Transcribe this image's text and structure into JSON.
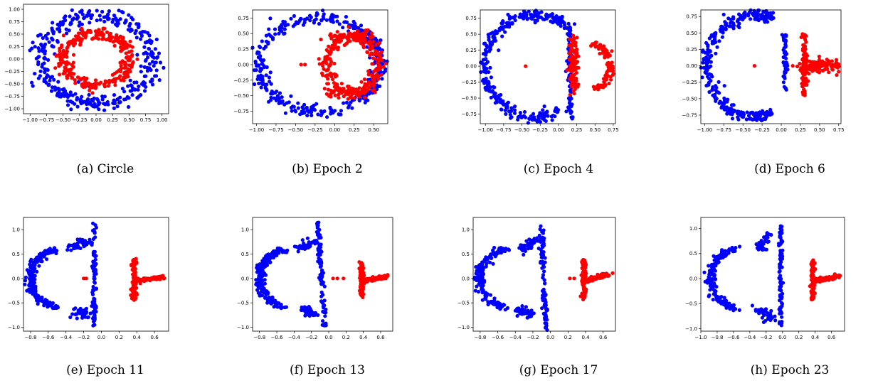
{
  "figure": {
    "colors": {
      "class_a": "#0000ff",
      "class_b": "#ff0000",
      "axes": "#000000",
      "background": "#ffffff"
    }
  },
  "chart_data": [
    {
      "type": "scatter",
      "caption": "(a)  Circle",
      "xlim": [
        -1.1,
        1.1
      ],
      "ylim": [
        -1.1,
        1.1
      ],
      "xticks": [
        -1.0,
        -0.75,
        -0.5,
        -0.25,
        0.0,
        0.25,
        0.5,
        0.75,
        1.0
      ],
      "yticks": [
        -1.0,
        -0.75,
        -0.5,
        -0.25,
        0.0,
        0.25,
        0.5,
        0.75,
        1.0
      ],
      "tick_decimals": 2,
      "series": [
        {
          "color": "#0000ff",
          "shape": "ring",
          "points": []
        },
        {
          "color": "#ff0000",
          "shape": "ring_inner",
          "points": []
        }
      ]
    },
    {
      "type": "scatter",
      "caption": "(b)  Epoch 2",
      "xlim": [
        -1.05,
        0.68
      ],
      "ylim": [
        -0.95,
        0.88
      ],
      "xticks": [
        -1.0,
        -0.75,
        -0.5,
        -0.25,
        0.0,
        0.25,
        0.5
      ],
      "yticks": [
        -0.75,
        -0.5,
        -0.25,
        0.0,
        0.25,
        0.5,
        0.75
      ],
      "tick_decimals": 2,
      "series": []
    },
    {
      "type": "scatter",
      "caption": "(c)  Epoch 4",
      "xlim": [
        -1.07,
        0.78
      ],
      "ylim": [
        -0.9,
        0.88
      ],
      "xticks": [
        -1.0,
        -0.75,
        -0.5,
        -0.25,
        0.0,
        0.25,
        0.5,
        0.75
      ],
      "yticks": [
        -0.75,
        -0.5,
        -0.25,
        0.0,
        0.25,
        0.5,
        0.75
      ],
      "tick_decimals": 2,
      "series": []
    },
    {
      "type": "scatter",
      "caption": "(d)  Epoch 6",
      "xlim": [
        -1.05,
        0.78
      ],
      "ylim": [
        -0.88,
        0.85
      ],
      "xticks": [
        -1.0,
        -0.75,
        -0.5,
        -0.25,
        0.0,
        0.25,
        0.5,
        0.75
      ],
      "yticks": [
        -0.75,
        -0.5,
        -0.25,
        0.0,
        0.25,
        0.5,
        0.75
      ],
      "tick_decimals": 2,
      "series": []
    },
    {
      "type": "scatter",
      "caption": "(e)  Epoch 11",
      "xlim": [
        -0.88,
        0.76
      ],
      "ylim": [
        -1.08,
        1.25
      ],
      "xticks": [
        -0.8,
        -0.6,
        -0.4,
        -0.2,
        0.0,
        0.2,
        0.4,
        0.6
      ],
      "yticks": [
        -1.0,
        -0.5,
        0.0,
        0.5,
        1.0
      ],
      "tick_decimals": 1,
      "series": []
    },
    {
      "type": "scatter",
      "caption": "(f)  Epoch 13",
      "xlim": [
        -0.88,
        0.74
      ],
      "ylim": [
        -1.08,
        1.25
      ],
      "xticks": [
        -0.8,
        -0.6,
        -0.4,
        -0.2,
        0.0,
        0.2,
        0.4,
        0.6
      ],
      "yticks": [
        -1.0,
        -0.5,
        0.0,
        0.5,
        1.0
      ],
      "tick_decimals": 1,
      "series": []
    },
    {
      "type": "scatter",
      "caption": "(g)  Epoch 17",
      "xlim": [
        -0.88,
        0.74
      ],
      "ylim": [
        -1.08,
        1.25
      ],
      "xticks": [
        -0.8,
        -0.6,
        -0.4,
        -0.2,
        0.0,
        0.2,
        0.4,
        0.6
      ],
      "yticks": [
        -1.0,
        -0.5,
        0.0,
        0.5,
        1.0
      ],
      "tick_decimals": 1,
      "series": []
    },
    {
      "type": "scatter",
      "caption": "(h)  Epoch 23",
      "xlim": [
        -1.0,
        0.76
      ],
      "ylim": [
        -1.05,
        1.22
      ],
      "xticks": [
        -1.0,
        -0.8,
        -0.6,
        -0.4,
        -0.2,
        0.0,
        0.2,
        0.4,
        0.6
      ],
      "yticks": [
        -1.0,
        -0.5,
        0.0,
        0.5,
        1.0
      ],
      "tick_decimals": 1,
      "series": []
    }
  ],
  "clusters": [
    [
      {
        "color": "#0000ff",
        "kind": "ring",
        "cx": 0,
        "cy": 0,
        "r": 0.85,
        "spread": 0.08,
        "n": 360
      },
      {
        "color": "#ff0000",
        "kind": "ring",
        "cx": 0,
        "cy": 0,
        "r": 0.5,
        "spread": 0.06,
        "n": 300
      }
    ],
    [
      {
        "color": "#0000ff",
        "kind": "arc",
        "cx": -0.2,
        "cy": 0,
        "rx": 0.78,
        "ry": 0.76,
        "a0": 0,
        "a1": 360,
        "spread": 0.05,
        "n": 330
      },
      {
        "color": "#0000ff",
        "kind": "arc",
        "cx": 0.48,
        "cy": 0,
        "rx": 0.1,
        "ry": 0.4,
        "a0": -90,
        "a1": 90,
        "spread": 0.04,
        "n": 60
      },
      {
        "color": "#ff0000",
        "kind": "arc",
        "cx": 0.25,
        "cy": 0.0,
        "rx": 0.35,
        "ry": 0.45,
        "a0": 90,
        "a1": 270,
        "spread": 0.05,
        "n": 120
      },
      {
        "color": "#ff0000",
        "kind": "arc",
        "cx": 0.25,
        "cy": 0.0,
        "rx": 0.3,
        "ry": 0.45,
        "a0": -80,
        "a1": 80,
        "spread": 0.05,
        "n": 120
      },
      {
        "color": "#ff0000",
        "kind": "line",
        "x0": -0.1,
        "y0": 0.45,
        "x1": 0.45,
        "y1": 0.45,
        "spread": 0.04,
        "n": 60
      },
      {
        "color": "#ff0000",
        "kind": "line",
        "x0": -0.1,
        "y0": -0.45,
        "x1": 0.45,
        "y1": -0.45,
        "spread": 0.04,
        "n": 60
      },
      {
        "color": "#ff0000",
        "kind": "points",
        "pts": [
          [
            -0.43,
            0.0
          ],
          [
            -0.38,
            0.0
          ]
        ]
      }
    ],
    [
      {
        "color": "#0000ff",
        "kind": "arc",
        "cx": -0.35,
        "cy": 0,
        "rx": 0.65,
        "ry": 0.8,
        "a0": 55,
        "a1": 305,
        "spread": 0.04,
        "n": 280
      },
      {
        "color": "#0000ff",
        "kind": "line",
        "x0": 0.16,
        "y0": -0.8,
        "x1": 0.16,
        "y1": 0.6,
        "spread": 0.02,
        "n": 90
      },
      {
        "color": "#0000ff",
        "kind": "line",
        "x0": -0.1,
        "y0": 0.8,
        "x1": 0.15,
        "y1": 0.6,
        "spread": 0.04,
        "n": 30
      },
      {
        "color": "#ff0000",
        "kind": "line",
        "x0": 0.2,
        "y0": -0.4,
        "x1": 0.2,
        "y1": 0.45,
        "spread": 0.03,
        "n": 110
      },
      {
        "color": "#ff0000",
        "kind": "arc",
        "cx": 0.45,
        "cy": 0.0,
        "rx": 0.25,
        "ry": 0.35,
        "a0": -80,
        "a1": 80,
        "spread": 0.03,
        "n": 90
      },
      {
        "color": "#ff0000",
        "kind": "points",
        "pts": [
          [
            -0.45,
            0.0
          ]
        ]
      }
    ],
    [
      {
        "color": "#0000ff",
        "kind": "arc",
        "cx": -0.35,
        "cy": 0,
        "rx": 0.62,
        "ry": 0.78,
        "a0": 70,
        "a1": 290,
        "spread": 0.04,
        "n": 260
      },
      {
        "color": "#0000ff",
        "kind": "line",
        "x0": 0.05,
        "y0": -0.5,
        "x1": 0.05,
        "y1": 0.5,
        "spread": 0.015,
        "n": 50
      },
      {
        "color": "#0000ff",
        "kind": "line",
        "x0": -0.35,
        "y0": 0.75,
        "x1": -0.15,
        "y1": 0.75,
        "spread": 0.04,
        "n": 30
      },
      {
        "color": "#0000ff",
        "kind": "line",
        "x0": -0.35,
        "y0": -0.75,
        "x1": -0.15,
        "y1": -0.75,
        "spread": 0.04,
        "n": 30
      },
      {
        "color": "#ff0000",
        "kind": "line",
        "x0": 0.3,
        "y0": -0.45,
        "x1": 0.3,
        "y1": 0.48,
        "spread": 0.02,
        "n": 80
      },
      {
        "color": "#ff0000",
        "kind": "line",
        "x0": 0.3,
        "y0": 0.0,
        "x1": 0.72,
        "y1": 0.0,
        "spread": 0.05,
        "n": 110
      },
      {
        "color": "#ff0000",
        "kind": "points",
        "pts": [
          [
            -0.35,
            0.0
          ],
          [
            0.15,
            0.0
          ]
        ]
      }
    ],
    [
      {
        "color": "#0000ff",
        "kind": "arc",
        "cx": -0.45,
        "cy": 0,
        "rx": 0.35,
        "ry": 0.6,
        "a0": 100,
        "a1": 260,
        "spread": 0.03,
        "n": 180
      },
      {
        "color": "#0000ff",
        "kind": "line",
        "x0": -0.35,
        "y0": 0.6,
        "x1": -0.15,
        "y1": 0.8,
        "spread": 0.04,
        "n": 40
      },
      {
        "color": "#0000ff",
        "kind": "line",
        "x0": -0.25,
        "y0": -0.65,
        "x1": -0.2,
        "y1": -0.75,
        "spread": 0.05,
        "n": 40
      },
      {
        "color": "#0000ff",
        "kind": "line",
        "x0": -0.08,
        "y0": -1.0,
        "x1": -0.08,
        "y1": 1.15,
        "spread": 0.012,
        "n": 90
      },
      {
        "color": "#ff0000",
        "kind": "line",
        "x0": 0.37,
        "y0": -0.45,
        "x1": 0.37,
        "y1": 0.4,
        "spread": 0.015,
        "n": 110
      },
      {
        "color": "#ff0000",
        "kind": "line",
        "x0": 0.37,
        "y0": -0.05,
        "x1": 0.7,
        "y1": 0.03,
        "spread": 0.02,
        "n": 80
      },
      {
        "color": "#ff0000",
        "kind": "points",
        "pts": [
          [
            -0.2,
            0.0
          ],
          [
            -0.17,
            0.0
          ]
        ]
      }
    ],
    [
      {
        "color": "#0000ff",
        "kind": "arc",
        "cx": -0.45,
        "cy": 0,
        "rx": 0.35,
        "ry": 0.6,
        "a0": 100,
        "a1": 260,
        "spread": 0.03,
        "n": 180
      },
      {
        "color": "#0000ff",
        "kind": "line",
        "x0": -0.35,
        "y0": 0.6,
        "x1": -0.15,
        "y1": 0.8,
        "spread": 0.04,
        "n": 40
      },
      {
        "color": "#0000ff",
        "kind": "line",
        "x0": -0.3,
        "y0": -0.6,
        "x1": -0.2,
        "y1": -0.75,
        "spread": 0.04,
        "n": 40
      },
      {
        "color": "#0000ff",
        "kind": "line",
        "x0": -0.12,
        "y0": 1.15,
        "x1": -0.05,
        "y1": -1.0,
        "spread": 0.012,
        "n": 90
      },
      {
        "color": "#ff0000",
        "kind": "line",
        "x0": 0.38,
        "y0": -0.4,
        "x1": 0.38,
        "y1": 0.35,
        "spread": 0.012,
        "n": 100
      },
      {
        "color": "#ff0000",
        "kind": "line",
        "x0": 0.4,
        "y0": -0.05,
        "x1": 0.67,
        "y1": 0.05,
        "spread": 0.02,
        "n": 80
      },
      {
        "color": "#ff0000",
        "kind": "points",
        "pts": [
          [
            0.05,
            0.0
          ],
          [
            0.1,
            0.0
          ],
          [
            0.17,
            0.0
          ]
        ]
      }
    ],
    [
      {
        "color": "#0000ff",
        "kind": "arc",
        "cx": -0.45,
        "cy": 0,
        "rx": 0.35,
        "ry": 0.6,
        "a0": 100,
        "a1": 260,
        "spread": 0.03,
        "n": 180
      },
      {
        "color": "#0000ff",
        "kind": "line",
        "x0": -0.33,
        "y0": 0.58,
        "x1": -0.15,
        "y1": 0.8,
        "spread": 0.04,
        "n": 40
      },
      {
        "color": "#0000ff",
        "kind": "line",
        "x0": -0.35,
        "y0": -0.65,
        "x1": -0.2,
        "y1": -0.75,
        "spread": 0.04,
        "n": 40
      },
      {
        "color": "#0000ff",
        "kind": "line",
        "x0": -0.1,
        "y0": 1.1,
        "x1": -0.05,
        "y1": -1.05,
        "spread": 0.012,
        "n": 90
      },
      {
        "color": "#ff0000",
        "kind": "line",
        "x0": 0.38,
        "y0": -0.42,
        "x1": 0.38,
        "y1": 0.38,
        "spread": 0.012,
        "n": 110
      },
      {
        "color": "#ff0000",
        "kind": "line",
        "x0": 0.4,
        "y0": -0.05,
        "x1": 0.67,
        "y1": 0.08,
        "spread": 0.02,
        "n": 80
      },
      {
        "color": "#ff0000",
        "kind": "points",
        "pts": [
          [
            0.22,
            0.0
          ],
          [
            0.27,
            0.0
          ]
        ]
      }
    ],
    [
      {
        "color": "#0000ff",
        "kind": "arc",
        "cx": -0.5,
        "cy": 0,
        "rx": 0.38,
        "ry": 0.6,
        "a0": 100,
        "a1": 260,
        "spread": 0.03,
        "n": 180
      },
      {
        "color": "#0000ff",
        "kind": "line",
        "x0": -0.28,
        "y0": 0.6,
        "x1": -0.18,
        "y1": 0.88,
        "spread": 0.04,
        "n": 40
      },
      {
        "color": "#0000ff",
        "kind": "line",
        "x0": -0.3,
        "y0": -0.6,
        "x1": -0.15,
        "y1": -0.8,
        "spread": 0.04,
        "n": 40
      },
      {
        "color": "#0000ff",
        "kind": "line",
        "x0": -0.02,
        "y0": 1.05,
        "x1": -0.02,
        "y1": -0.95,
        "spread": 0.012,
        "n": 90
      },
      {
        "color": "#ff0000",
        "kind": "line",
        "x0": 0.37,
        "y0": -0.42,
        "x1": 0.37,
        "y1": 0.38,
        "spread": 0.012,
        "n": 100
      },
      {
        "color": "#ff0000",
        "kind": "line",
        "x0": 0.38,
        "y0": -0.05,
        "x1": 0.7,
        "y1": 0.05,
        "spread": 0.02,
        "n": 80
      }
    ]
  ]
}
